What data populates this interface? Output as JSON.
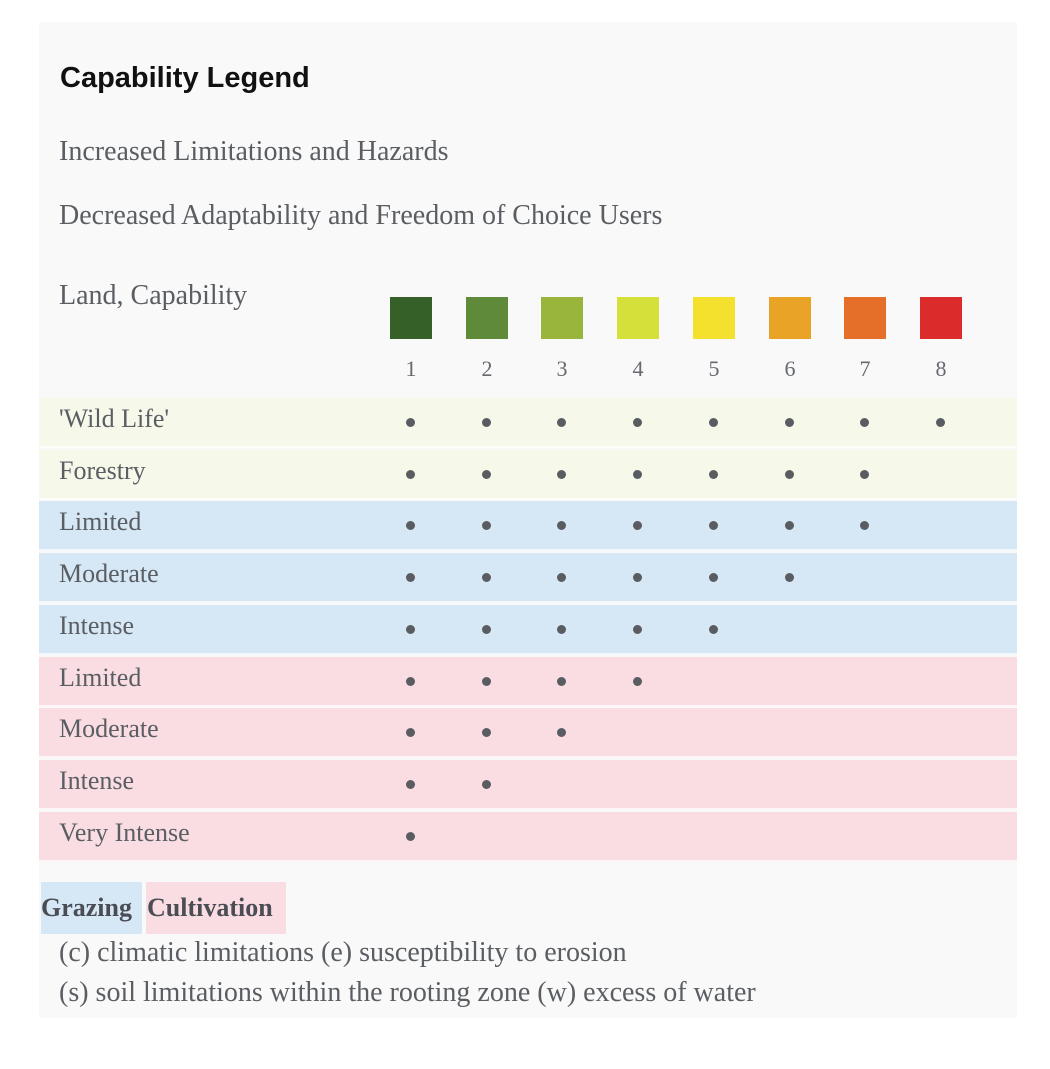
{
  "title": "Capability Legend",
  "lines": [
    "Increased Limitations and Hazards",
    "Decreased Adaptability and Freedom of Choice Users"
  ],
  "scale_label": "Land, Capability",
  "classes": [
    {
      "label": "1",
      "color": "#356129"
    },
    {
      "label": "2",
      "color": "#5e8a3a"
    },
    {
      "label": "3",
      "color": "#99b53c"
    },
    {
      "label": "4",
      "color": "#d6e03a"
    },
    {
      "label": "5",
      "color": "#f4e12e"
    },
    {
      "label": "6",
      "color": "#e9a428"
    },
    {
      "label": "7",
      "color": "#e56e28"
    },
    {
      "label": "8",
      "color": "#db2b2b"
    }
  ],
  "rows": [
    {
      "label": "'Wild Life'",
      "group": "wild",
      "max_class": 8
    },
    {
      "label": "Forestry",
      "group": "wild",
      "max_class": 7
    },
    {
      "label": "Limited",
      "group": "grazing",
      "max_class": 7
    },
    {
      "label": "Moderate",
      "group": "grazing",
      "max_class": 6
    },
    {
      "label": "Intense",
      "group": "grazing",
      "max_class": 5
    },
    {
      "label": "Limited",
      "group": "cultivation",
      "max_class": 4
    },
    {
      "label": "Moderate",
      "group": "cultivation",
      "max_class": 3
    },
    {
      "label": "Intense",
      "group": "cultivation",
      "max_class": 2
    },
    {
      "label": "Very Intense",
      "group": "cultivation",
      "max_class": 1
    }
  ],
  "group_colors": {
    "wild": "#f6f8ea",
    "grazing": "#d6e7f5",
    "cultivation": "#f9dde3"
  },
  "legend": {
    "grazing": "Grazing",
    "cultivation": "Cultivation"
  },
  "notes": [
    "(c) climatic limitations (e) susceptibility to erosion",
    "(s) soil limitations within the rooting zone (w) excess of water"
  ]
}
